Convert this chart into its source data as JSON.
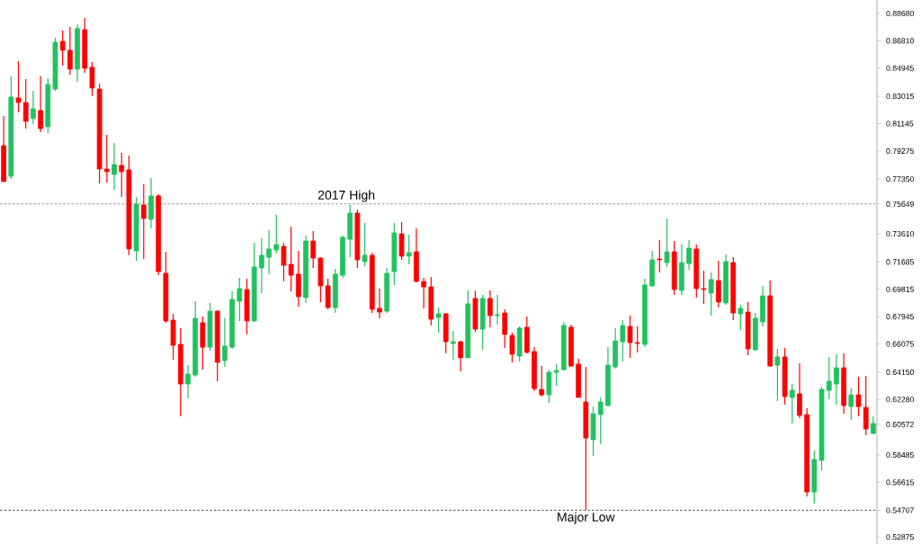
{
  "chart_data": {
    "type": "candlestick",
    "categories": [
      null,
      null,
      null,
      null,
      null,
      null,
      null,
      null,
      null,
      null,
      null,
      null,
      null,
      null,
      null,
      null,
      null,
      null,
      null,
      null,
      null,
      null,
      null,
      null,
      null,
      null,
      null,
      null,
      null,
      null,
      null,
      null,
      null,
      null,
      null,
      null,
      null,
      null,
      null,
      null,
      null,
      null,
      null,
      null,
      null,
      null,
      null,
      null,
      null,
      null,
      null,
      null,
      null,
      null,
      null,
      null,
      null,
      null,
      null,
      null,
      null,
      null,
      null,
      null,
      null,
      null,
      null,
      null,
      null,
      null,
      null,
      null,
      null,
      null,
      null,
      null,
      null,
      null,
      null,
      null,
      null,
      null,
      null,
      null,
      null,
      null,
      null,
      null,
      null,
      null,
      null,
      null,
      null,
      null,
      null,
      null,
      null,
      null,
      null,
      null,
      null,
      null,
      null,
      null,
      null,
      null,
      null,
      null,
      null,
      null,
      null,
      null,
      null,
      null,
      null,
      null,
      null,
      null,
      null
    ],
    "ohlc": [
      [
        0.7964,
        0.8167,
        0.7718,
        0.7718
      ],
      [
        0.7755,
        0.8438,
        0.7736,
        0.8296
      ],
      [
        0.829,
        0.8542,
        0.8192,
        0.8259
      ],
      [
        0.8259,
        0.8419,
        0.8081,
        0.813
      ],
      [
        0.8149,
        0.8339,
        0.8112,
        0.8216
      ],
      [
        0.8204,
        0.8438,
        0.8056,
        0.8081
      ],
      [
        0.8093,
        0.8425,
        0.805,
        0.8382
      ],
      [
        0.8351,
        0.8702,
        0.8339,
        0.8671
      ],
      [
        0.8677,
        0.8751,
        0.8511,
        0.8616
      ],
      [
        0.8616,
        0.8776,
        0.845,
        0.8487
      ],
      [
        0.8487,
        0.8794,
        0.8401,
        0.8764
      ],
      [
        0.8757,
        0.8837,
        0.8462,
        0.8493
      ],
      [
        0.8499,
        0.8536,
        0.8302,
        0.8358
      ],
      [
        0.8351,
        0.8388,
        0.7706,
        0.7804
      ],
      [
        0.7804,
        0.8038,
        0.7712,
        0.7786
      ],
      [
        0.7767,
        0.7982,
        0.7663,
        0.7835
      ],
      [
        0.7829,
        0.7915,
        0.7613,
        0.7786
      ],
      [
        0.7798,
        0.7896,
        0.7214,
        0.7257
      ],
      [
        0.7244,
        0.7613,
        0.7177,
        0.7564
      ],
      [
        0.7558,
        0.77,
        0.7189,
        0.7466
      ],
      [
        0.746,
        0.7743,
        0.7398,
        0.762
      ],
      [
        0.762,
        0.7632,
        0.7078,
        0.7103
      ],
      [
        0.7091,
        0.7238,
        0.6753,
        0.6765
      ],
      [
        0.6771,
        0.6814,
        0.65,
        0.6599
      ],
      [
        0.6605,
        0.6716,
        0.6113,
        0.6334
      ],
      [
        0.6334,
        0.6463,
        0.6236,
        0.6402
      ],
      [
        0.6396,
        0.69,
        0.6383,
        0.6783
      ],
      [
        0.6753,
        0.6796,
        0.6433,
        0.6586
      ],
      [
        0.6586,
        0.6888,
        0.6562,
        0.6832
      ],
      [
        0.6832,
        0.6839,
        0.6353,
        0.6482
      ],
      [
        0.6494,
        0.6783,
        0.6451,
        0.6593
      ],
      [
        0.6586,
        0.6968,
        0.6574,
        0.6912
      ],
      [
        0.69,
        0.706,
        0.6765,
        0.6986
      ],
      [
        0.698,
        0.7054,
        0.6673,
        0.6765
      ],
      [
        0.6765,
        0.73,
        0.6759,
        0.7134
      ],
      [
        0.7128,
        0.7331,
        0.6955,
        0.7214
      ],
      [
        0.7201,
        0.7386,
        0.7085,
        0.7257
      ],
      [
        0.7251,
        0.749,
        0.7226,
        0.7287
      ],
      [
        0.7275,
        0.73,
        0.7035,
        0.7146
      ],
      [
        0.7152,
        0.741,
        0.6968,
        0.7078
      ],
      [
        0.7085,
        0.7244,
        0.6863,
        0.6931
      ],
      [
        0.6925,
        0.7349,
        0.6888,
        0.7312
      ],
      [
        0.7312,
        0.738,
        0.7128,
        0.7195
      ],
      [
        0.7195,
        0.7201,
        0.6894,
        0.7005
      ],
      [
        0.7005,
        0.7054,
        0.6845,
        0.6857
      ],
      [
        0.6857,
        0.7121,
        0.682,
        0.7085
      ],
      [
        0.7078,
        0.7349,
        0.706,
        0.7337
      ],
      [
        0.7324,
        0.7558,
        0.7201,
        0.7503
      ],
      [
        0.7503,
        0.7527,
        0.7128,
        0.7183
      ],
      [
        0.7171,
        0.7435,
        0.714,
        0.7214
      ],
      [
        0.7214,
        0.7232,
        0.682,
        0.6845
      ],
      [
        0.6851,
        0.6986,
        0.6783,
        0.6826
      ],
      [
        0.6832,
        0.7128,
        0.682,
        0.7091
      ],
      [
        0.7103,
        0.7435,
        0.7011,
        0.7367
      ],
      [
        0.7361,
        0.7441,
        0.7183,
        0.7208
      ],
      [
        0.7208,
        0.7355,
        0.7152,
        0.7232
      ],
      [
        0.7238,
        0.7398,
        0.7029,
        0.7035
      ],
      [
        0.7035,
        0.706,
        0.6851,
        0.6998
      ],
      [
        0.6998,
        0.7066,
        0.6734,
        0.6777
      ],
      [
        0.6789,
        0.6857,
        0.6685,
        0.6814
      ],
      [
        0.6814,
        0.682,
        0.6543,
        0.6623
      ],
      [
        0.6611,
        0.6697,
        0.65,
        0.6623
      ],
      [
        0.6623,
        0.6629,
        0.642,
        0.6513
      ],
      [
        0.6513,
        0.6974,
        0.6513,
        0.6882
      ],
      [
        0.6919,
        0.6974,
        0.6691,
        0.6709
      ],
      [
        0.6709,
        0.6943,
        0.6568,
        0.6919
      ],
      [
        0.6919,
        0.6974,
        0.6722,
        0.6802
      ],
      [
        0.6802,
        0.6943,
        0.674,
        0.6808
      ],
      [
        0.682,
        0.6845,
        0.658,
        0.6673
      ],
      [
        0.6666,
        0.6685,
        0.6482,
        0.6537
      ],
      [
        0.6525,
        0.6728,
        0.6488,
        0.6716
      ],
      [
        0.6722,
        0.6796,
        0.6543,
        0.655
      ],
      [
        0.6556,
        0.6586,
        0.6285,
        0.6303
      ],
      [
        0.6297,
        0.6457,
        0.6248,
        0.626
      ],
      [
        0.626,
        0.6433,
        0.6205,
        0.6414
      ],
      [
        0.6414,
        0.647,
        0.6322,
        0.6426
      ],
      [
        0.6433,
        0.6759,
        0.6426,
        0.6734
      ],
      [
        0.6722,
        0.674,
        0.6451,
        0.6457
      ],
      [
        0.647,
        0.6506,
        0.6242,
        0.6242
      ],
      [
        0.6211,
        0.6451,
        0.5473,
        0.5965
      ],
      [
        0.5953,
        0.618,
        0.5842,
        0.6131
      ],
      [
        0.6125,
        0.6242,
        0.5922,
        0.6211
      ],
      [
        0.6187,
        0.6586,
        0.618,
        0.6463
      ],
      [
        0.6451,
        0.6716,
        0.6439,
        0.6629
      ],
      [
        0.6623,
        0.6771,
        0.6488,
        0.6734
      ],
      [
        0.6728,
        0.6802,
        0.6513,
        0.6617
      ],
      [
        0.6617,
        0.6728,
        0.655,
        0.6611
      ],
      [
        0.6605,
        0.7054,
        0.6586,
        0.7011
      ],
      [
        0.7005,
        0.7244,
        0.6998,
        0.7183
      ],
      [
        0.7189,
        0.7318,
        0.7097,
        0.7183
      ],
      [
        0.7164,
        0.7466,
        0.7134,
        0.7238
      ],
      [
        0.7238,
        0.7312,
        0.6943,
        0.698
      ],
      [
        0.6974,
        0.7287,
        0.6943,
        0.7164
      ],
      [
        0.7158,
        0.7318,
        0.7115,
        0.7263
      ],
      [
        0.7257,
        0.7287,
        0.6925,
        0.6986
      ],
      [
        0.6986,
        0.7109,
        0.6882,
        0.698
      ],
      [
        0.6955,
        0.7097,
        0.6802,
        0.7048
      ],
      [
        0.7041,
        0.7177,
        0.6857,
        0.6894
      ],
      [
        0.6888,
        0.722,
        0.6875,
        0.7171
      ],
      [
        0.7164,
        0.7201,
        0.6771,
        0.682
      ],
      [
        0.6814,
        0.6875,
        0.6703,
        0.6851
      ],
      [
        0.6826,
        0.6894,
        0.6531,
        0.6574
      ],
      [
        0.6568,
        0.682,
        0.6562,
        0.6783
      ],
      [
        0.6759,
        0.7005,
        0.6728,
        0.6937
      ],
      [
        0.6937,
        0.7041,
        0.6451,
        0.6457
      ],
      [
        0.6463,
        0.6574,
        0.6217,
        0.6519
      ],
      [
        0.6519,
        0.658,
        0.6193,
        0.6248
      ],
      [
        0.6242,
        0.6334,
        0.6064,
        0.6291
      ],
      [
        0.6267,
        0.6476,
        0.6101,
        0.6119
      ],
      [
        0.6125,
        0.6168,
        0.5565,
        0.5596
      ],
      [
        0.5596,
        0.5879,
        0.5516,
        0.5818
      ],
      [
        0.5812,
        0.6316,
        0.5744,
        0.6297
      ],
      [
        0.6291,
        0.6519,
        0.623,
        0.6353
      ],
      [
        0.6334,
        0.6537,
        0.6193,
        0.6445
      ],
      [
        0.6445,
        0.6543,
        0.6131,
        0.6187
      ],
      [
        0.618,
        0.6303,
        0.6088,
        0.626
      ],
      [
        0.626,
        0.6383,
        0.6113,
        0.618
      ],
      [
        0.6174,
        0.639,
        0.5984,
        0.6027
      ],
      [
        0.5996,
        0.6113,
        0.599,
        0.6064
      ]
    ],
    "ylim": [
      0.524,
      0.896
    ],
    "yticks": [
      {
        "value": 0.8868,
        "label": "0.88680"
      },
      {
        "value": 0.8681,
        "label": "0.86810"
      },
      {
        "value": 0.84945,
        "label": "0.84945"
      },
      {
        "value": 0.83015,
        "label": "0.83015"
      },
      {
        "value": 0.81145,
        "label": "0.81145"
      },
      {
        "value": 0.79275,
        "label": "0.79275"
      },
      {
        "value": 0.7735,
        "label": "0.77350"
      },
      {
        "value": 0.75649,
        "label": "0.75649"
      },
      {
        "value": 0.7361,
        "label": "0.73610"
      },
      {
        "value": 0.71685,
        "label": "0.71685"
      },
      {
        "value": 0.69815,
        "label": "0.69815"
      },
      {
        "value": 0.67945,
        "label": "0.67945"
      },
      {
        "value": 0.66075,
        "label": "0.66075"
      },
      {
        "value": 0.6415,
        "label": "0.64150"
      },
      {
        "value": 0.6228,
        "label": "0.62280"
      },
      {
        "value": 0.60572,
        "label": "0.60572"
      },
      {
        "value": 0.58485,
        "label": "0.58485"
      },
      {
        "value": 0.56615,
        "label": "0.56615"
      },
      {
        "value": 0.54707,
        "label": "0.54707"
      },
      {
        "value": 0.52875,
        "label": "0.52875"
      }
    ],
    "tick_labels": "y",
    "grid": false,
    "ref_lines": [
      {
        "axis": "y",
        "value": 0.75649,
        "label": "2017 High",
        "line_style": "dashed"
      },
      {
        "axis": "y",
        "value": 0.54707,
        "label": "Major Low",
        "line_style": "dashed"
      }
    ]
  }
}
